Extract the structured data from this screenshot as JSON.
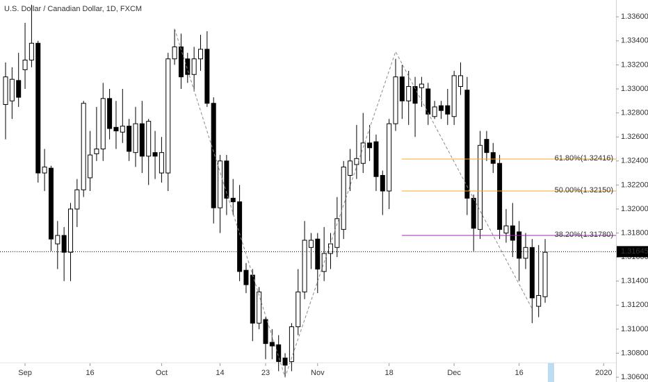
{
  "chart_data": {
    "type": "candlestick",
    "title": "U.S. Dollar / Canadian Dollar, 1D, FXCM",
    "categories": [
      null,
      null,
      null,
      "Sep",
      null,
      null,
      null,
      null,
      null,
      null,
      null,
      null,
      null,
      "16",
      null,
      null,
      null,
      null,
      null,
      null,
      null,
      null,
      null,
      null,
      "Oct",
      null,
      null,
      null,
      null,
      null,
      null,
      null,
      null,
      "14",
      null,
      null,
      null,
      null,
      null,
      null,
      "23",
      null,
      null,
      null,
      null,
      null,
      null,
      null,
      "Nov",
      null,
      null,
      null,
      null,
      null,
      null,
      null,
      null,
      null,
      null,
      "18",
      null,
      null,
      null,
      null,
      null,
      null,
      null,
      null,
      null,
      "Dec",
      null,
      null,
      null,
      null,
      null,
      null,
      null,
      null,
      null,
      "16",
      null,
      null,
      null,
      null,
      null,
      null,
      null,
      null,
      null,
      null,
      null,
      null,
      "2020"
    ],
    "open": [
      1.3287,
      1.329,
      1.3307,
      1.3316,
      1.3324,
      1.3338,
      1.323,
      1.3234,
      1.3171,
      1.3178,
      1.3164,
      1.32,
      1.3216,
      1.3226,
      1.3246,
      1.325,
      1.3292,
      1.3268,
      1.3264,
      1.3269,
      1.3247,
      1.3271,
      1.3244,
      1.3247,
      1.323,
      1.323,
      1.3325,
      1.3335,
      1.3325,
      1.3312,
      1.3325,
      1.3333,
      1.3288,
      1.3201,
      1.324,
      1.3209,
      1.3206,
      1.3149,
      1.3145,
      1.3105,
      1.3108,
      1.3089,
      1.3087,
      1.3076,
      1.3073,
      1.3102,
      1.3131,
      1.3168,
      1.3175,
      1.3148,
      1.3163,
      1.3168,
      1.3183,
      1.3228,
      1.3237,
      1.3238,
      1.3255,
      1.3256,
      1.3228,
      1.3215,
      1.3271,
      1.331,
      1.329,
      1.3302,
      1.3301,
      1.33,
      1.3277,
      1.3286,
      1.3286,
      1.3277,
      1.3302,
      1.3299,
      1.3209,
      1.3183,
      1.3258,
      1.3247,
      1.3238,
      1.318,
      1.3186,
      1.3181,
      1.3159,
      1.3168,
      1.3119,
      1.3127,
      null,
      null,
      null,
      null,
      null,
      null,
      null,
      null,
      null
    ],
    "high": [
      1.3322,
      1.3318,
      1.333,
      1.3355,
      1.337,
      1.334,
      1.325,
      1.3236,
      1.319,
      1.3185,
      1.3205,
      1.3225,
      1.329,
      1.3265,
      1.3285,
      1.3305,
      1.33,
      1.329,
      1.33,
      1.3275,
      1.3285,
      1.329,
      1.3275,
      1.3265,
      1.326,
      1.333,
      1.335,
      1.3346,
      1.333,
      1.3335,
      1.3345,
      1.3348,
      1.3293,
      1.3245,
      1.3245,
      1.3225,
      1.322,
      1.3155,
      1.315,
      1.3135,
      1.311,
      1.31,
      1.3095,
      1.308,
      1.3105,
      1.315,
      1.319,
      1.318,
      1.318,
      1.3185,
      1.318,
      1.321,
      1.324,
      1.325,
      1.327,
      1.328,
      1.327,
      1.3262,
      1.3232,
      1.3275,
      1.3325,
      1.332,
      1.3315,
      1.331,
      1.331,
      1.3305,
      1.329,
      1.329,
      1.33,
      1.3315,
      1.3322,
      1.331,
      1.3212,
      1.3265,
      1.3265,
      1.3255,
      1.3245,
      1.32,
      1.3205,
      1.319,
      1.318,
      1.3175,
      1.317,
      1.3175,
      null,
      null,
      null,
      null,
      null,
      null,
      null,
      null,
      null
    ],
    "low": [
      1.3258,
      1.3275,
      1.3285,
      1.33,
      1.3318,
      1.3222,
      1.3215,
      1.3165,
      1.315,
      1.314,
      1.314,
      1.3185,
      1.321,
      1.3215,
      1.324,
      1.324,
      1.3258,
      1.325,
      1.3255,
      1.324,
      1.3235,
      1.323,
      1.322,
      1.3225,
      1.3222,
      1.3215,
      1.332,
      1.33,
      1.3305,
      1.3298,
      1.3315,
      1.3285,
      1.3188,
      1.318,
      1.3195,
      1.3195,
      1.314,
      1.313,
      1.309,
      1.31,
      1.3075,
      1.3075,
      1.3065,
      1.306,
      1.3065,
      1.3095,
      1.3125,
      1.315,
      1.313,
      1.314,
      1.315,
      1.316,
      1.3175,
      1.3215,
      1.3225,
      1.323,
      1.324,
      1.3215,
      1.3195,
      1.32,
      1.3265,
      1.3275,
      1.327,
      1.326,
      1.3285,
      1.327,
      1.3275,
      1.3275,
      1.327,
      1.327,
      1.3295,
      1.3195,
      1.3165,
      1.3175,
      1.324,
      1.323,
      1.3175,
      1.3172,
      1.316,
      1.314,
      1.315,
      1.3105,
      1.311,
      1.3122,
      null,
      null,
      null,
      null,
      null,
      null,
      null,
      null,
      null
    ],
    "close": [
      1.331,
      1.3308,
      1.3293,
      1.3324,
      1.3338,
      1.323,
      1.3235,
      1.3175,
      1.3178,
      1.3164,
      1.32,
      1.3216,
      1.3288,
      1.3245,
      1.325,
      1.3292,
      1.3267,
      1.3265,
      1.3269,
      1.3248,
      1.3271,
      1.3244,
      1.3273,
      1.3244,
      1.3247,
      1.3325,
      1.3335,
      1.331,
      1.3312,
      1.3325,
      1.3333,
      1.3288,
      1.3201,
      1.324,
      1.3209,
      1.3206,
      1.3148,
      1.3137,
      1.3105,
      1.3131,
      1.3088,
      1.3086,
      1.3073,
      1.307,
      1.3102,
      1.3131,
      1.3174,
      1.3174,
      1.315,
      1.3163,
      1.3171,
      1.3192,
      1.3235,
      1.324,
      1.3242,
      1.3255,
      1.3251,
      1.3227,
      1.3215,
      1.3271,
      1.331,
      1.329,
      1.3302,
      1.3288,
      1.3304,
      1.3279,
      1.3285,
      1.3282,
      1.3279,
      1.3311,
      1.3311,
      1.3209,
      1.3184,
      1.3253,
      1.3247,
      1.3238,
      1.3183,
      1.3186,
      1.3174,
      1.3159,
      1.3168,
      1.3126,
      1.3128,
      1.3164,
      null,
      null,
      null,
      null,
      null,
      null,
      null,
      null,
      null
    ],
    "up_color": "#ffffff",
    "down_color": "#000000",
    "ylim": [
      1.3056,
      1.3374
    ],
    "yticks": [
      {
        "value": 1.306,
        "label": "1.30600"
      },
      {
        "value": 1.308,
        "label": "1.30800"
      },
      {
        "value": 1.31,
        "label": "1.31000"
      },
      {
        "value": 1.312,
        "label": "1.31200"
      },
      {
        "value": 1.314,
        "label": "1.31400"
      },
      {
        "value": 1.316,
        "label": "1.31600"
      },
      {
        "value": 1.318,
        "label": "1.31800"
      },
      {
        "value": 1.32,
        "label": "1.32000"
      },
      {
        "value": 1.322,
        "label": "1.32200"
      },
      {
        "value": 1.324,
        "label": "1.32400"
      },
      {
        "value": 1.326,
        "label": "1.32600"
      },
      {
        "value": 1.328,
        "label": "1.32800"
      },
      {
        "value": 1.33,
        "label": "1.33000"
      },
      {
        "value": 1.332,
        "label": "1.33200"
      },
      {
        "value": 1.334,
        "label": "1.33400"
      },
      {
        "value": 1.336,
        "label": "1.33600"
      }
    ],
    "last_price": 1.31645,
    "fib_levels": [
      {
        "label": "61.80%(1.32416)",
        "value": 1.32416,
        "color": "#f5a623"
      },
      {
        "label": "50.00%(1.32150)",
        "value": 1.3215,
        "color": "#f5a623"
      },
      {
        "label": "38.20%(1.31780)",
        "value": 1.3178,
        "color": "#9c27b0"
      }
    ],
    "zigzag": {
      "x": [
        26,
        43,
        60,
        81
      ],
      "y": [
        1.335,
        1.306,
        1.3331,
        1.3117
      ]
    }
  }
}
